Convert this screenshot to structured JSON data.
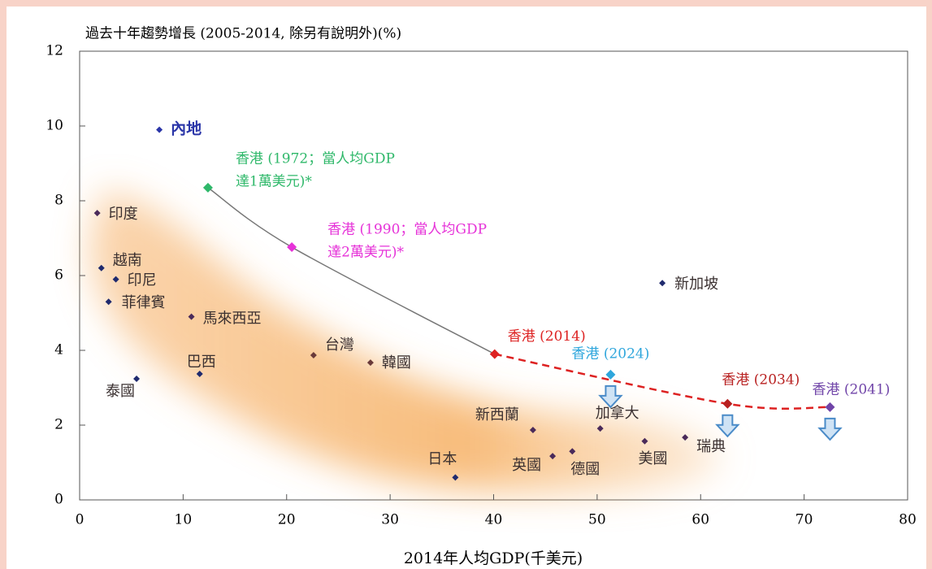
{
  "chart_data": {
    "type": "scatter",
    "title": "過去十年趨勢增長 (2005-2014, 除另有說明外)(%)",
    "x_label": "2014年人均GDP(千美元)",
    "xlim": [
      0,
      80
    ],
    "xticks": [
      0,
      10,
      20,
      30,
      40,
      50,
      60,
      70,
      80
    ],
    "ylim": [
      0,
      12
    ],
    "yticks": [
      0,
      2,
      4,
      6,
      8,
      10,
      12
    ],
    "points": [
      {
        "label": [
          "內地"
        ],
        "x": 7.7,
        "y": 9.9,
        "color": "#2a35a8"
      },
      {
        "label": [
          "香港 (1972；當人均GDP",
          "達1萬美元)*"
        ],
        "x": 12.4,
        "y": 8.35,
        "color": "#2fb86a"
      },
      {
        "label": [
          "印度"
        ],
        "x": 1.7,
        "y": 7.67,
        "color": "#4a2a5a"
      },
      {
        "label": [
          "香港 (1990；當人均GDP",
          "達2萬美元)*"
        ],
        "x": 20.5,
        "y": 6.76,
        "color": "#e632d8"
      },
      {
        "label": [
          "越南"
        ],
        "x": 2.1,
        "y": 6.2,
        "color": "#1f2a6e"
      },
      {
        "label": [
          "印尼"
        ],
        "x": 3.5,
        "y": 5.9,
        "color": "#1f2a6e"
      },
      {
        "label": [
          "菲律賓"
        ],
        "x": 2.8,
        "y": 5.3,
        "color": "#1f2a6e"
      },
      {
        "label": [
          "馬來西亞"
        ],
        "x": 10.8,
        "y": 4.9,
        "color": "#4a2a5a"
      },
      {
        "label": [
          "新加坡"
        ],
        "x": 56.3,
        "y": 5.8,
        "color": "#1f2a6e"
      },
      {
        "label": [
          "台灣"
        ],
        "x": 22.6,
        "y": 3.87,
        "color": "#6a3a3a"
      },
      {
        "label": [
          "韓國"
        ],
        "x": 28.1,
        "y": 3.67,
        "color": "#6a3a3a"
      },
      {
        "label": [
          "香港 (2014)"
        ],
        "x": 40.1,
        "y": 3.9,
        "color": "#dd2222"
      },
      {
        "label": [
          "巴西"
        ],
        "x": 11.6,
        "y": 3.37,
        "color": "#1f2a6e"
      },
      {
        "label": [
          "泰國"
        ],
        "x": 5.5,
        "y": 3.24,
        "color": "#1f2a6e"
      },
      {
        "label": [
          "香港 (2024)"
        ],
        "x": 51.3,
        "y": 3.35,
        "color": "#2ea6dc"
      },
      {
        "label": [
          "香港 (2034)"
        ],
        "x": 62.6,
        "y": 2.57,
        "color": "#b82020"
      },
      {
        "label": [
          "香港 (2041)"
        ],
        "x": 72.5,
        "y": 2.48,
        "color": "#7044a8"
      },
      {
        "label": [
          "加拿大"
        ],
        "x": 50.3,
        "y": 1.91,
        "color": "#4a2a5a"
      },
      {
        "label": [
          "新西蘭"
        ],
        "x": 43.8,
        "y": 1.87,
        "color": "#4a2a5a"
      },
      {
        "label": [
          "瑞典"
        ],
        "x": 58.5,
        "y": 1.67,
        "color": "#4a2a5a"
      },
      {
        "label": [
          "美國"
        ],
        "x": 54.6,
        "y": 1.57,
        "color": "#4a2a5a"
      },
      {
        "label": [
          "德國"
        ],
        "x": 47.6,
        "y": 1.3,
        "color": "#4a2a5a"
      },
      {
        "label": [
          "英國"
        ],
        "x": 45.7,
        "y": 1.17,
        "color": "#4a2a5a"
      },
      {
        "label": [
          "日本"
        ],
        "x": 36.3,
        "y": 0.6,
        "color": "#1f2a6e"
      }
    ]
  }
}
